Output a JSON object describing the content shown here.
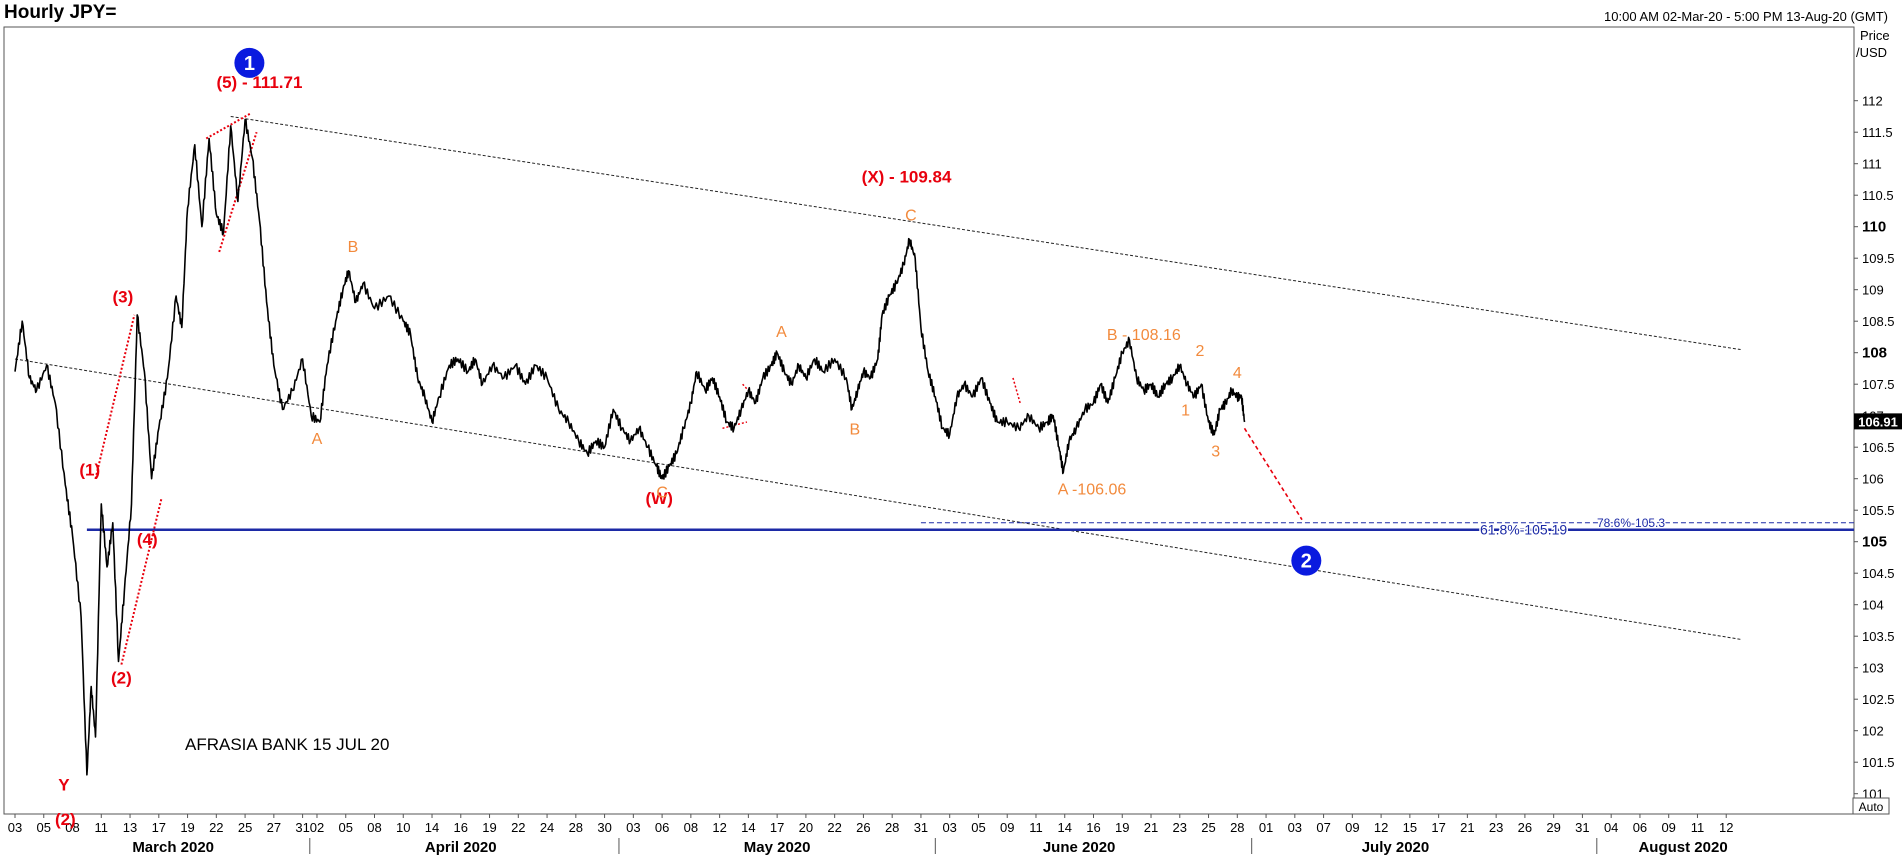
{
  "header": {
    "title": "Hourly JPY=",
    "date_range": "10:00 AM 02-Mar-20 - 5:00 PM 13-Aug-20 (GMT)"
  },
  "axis_units": {
    "line1": "Price",
    "line2": "/USD"
  },
  "auto_label": "Auto",
  "watermark": "AFRASIA BANK 15 JUL 20",
  "colors": {
    "wave": "#e8000d",
    "sub_wave": "#f28a3c",
    "fib": "#1c2aa6",
    "price": "#000000",
    "circle": "#0a1adf"
  },
  "chart_data": {
    "type": "line",
    "ylim": [
      100.8,
      112.6
    ],
    "y_ticks": [
      {
        "v": 101,
        "label": "101"
      },
      {
        "v": 101.5,
        "label": "101.5"
      },
      {
        "v": 102,
        "label": "102"
      },
      {
        "v": 102.5,
        "label": "102.5"
      },
      {
        "v": 103,
        "label": "103"
      },
      {
        "v": 103.5,
        "label": "103.5"
      },
      {
        "v": 104,
        "label": "104"
      },
      {
        "v": 104.5,
        "label": "104.5"
      },
      {
        "v": 105,
        "label": "105",
        "bold": true
      },
      {
        "v": 105.5,
        "label": "105.5"
      },
      {
        "v": 106,
        "label": "106"
      },
      {
        "v": 106.5,
        "label": "106.5"
      },
      {
        "v": 107,
        "label": "107"
      },
      {
        "v": 107.5,
        "label": "107.5"
      },
      {
        "v": 108,
        "label": "108",
        "bold": true
      },
      {
        "v": 108.5,
        "label": "108.5"
      },
      {
        "v": 109,
        "label": "109"
      },
      {
        "v": 109.5,
        "label": "109.5"
      },
      {
        "v": 110,
        "label": "110",
        "bold": true
      },
      {
        "v": 110.5,
        "label": "110.5"
      },
      {
        "v": 111,
        "label": "111"
      },
      {
        "v": 111.5,
        "label": "111.5"
      },
      {
        "v": 112,
        "label": "112"
      }
    ],
    "x_ticks": [
      {
        "d": 0,
        "label": "03"
      },
      {
        "d": 2,
        "label": "05"
      },
      {
        "d": 4,
        "label": "08"
      },
      {
        "d": 6,
        "label": "11"
      },
      {
        "d": 8,
        "label": "13"
      },
      {
        "d": 10,
        "label": "17"
      },
      {
        "d": 12,
        "label": "19"
      },
      {
        "d": 14,
        "label": "22"
      },
      {
        "d": 16,
        "label": "25"
      },
      {
        "d": 18,
        "label": "27"
      },
      {
        "d": 20,
        "label": "31"
      },
      {
        "d": 21,
        "label": "02"
      },
      {
        "d": 23,
        "label": "05"
      },
      {
        "d": 25,
        "label": "08"
      },
      {
        "d": 27,
        "label": "10"
      },
      {
        "d": 29,
        "label": "14"
      },
      {
        "d": 31,
        "label": "16"
      },
      {
        "d": 33,
        "label": "19"
      },
      {
        "d": 35,
        "label": "22"
      },
      {
        "d": 37,
        "label": "24"
      },
      {
        "d": 39,
        "label": "28"
      },
      {
        "d": 41,
        "label": "30"
      },
      {
        "d": 43,
        "label": "03"
      },
      {
        "d": 45,
        "label": "06"
      },
      {
        "d": 47,
        "label": "08"
      },
      {
        "d": 49,
        "label": "12"
      },
      {
        "d": 51,
        "label": "14"
      },
      {
        "d": 53,
        "label": "17"
      },
      {
        "d": 55,
        "label": "20"
      },
      {
        "d": 57,
        "label": "22"
      },
      {
        "d": 59,
        "label": "26"
      },
      {
        "d": 61,
        "label": "28"
      },
      {
        "d": 63,
        "label": "31"
      },
      {
        "d": 65,
        "label": "03"
      },
      {
        "d": 67,
        "label": "05"
      },
      {
        "d": 69,
        "label": "09"
      },
      {
        "d": 71,
        "label": "11"
      },
      {
        "d": 73,
        "label": "14"
      },
      {
        "d": 75,
        "label": "16"
      },
      {
        "d": 77,
        "label": "19"
      },
      {
        "d": 79,
        "label": "21"
      },
      {
        "d": 81,
        "label": "23"
      },
      {
        "d": 83,
        "label": "25"
      },
      {
        "d": 85,
        "label": "28"
      },
      {
        "d": 87,
        "label": "01"
      },
      {
        "d": 89,
        "label": "03"
      },
      {
        "d": 91,
        "label": "07"
      },
      {
        "d": 93,
        "label": "09"
      },
      {
        "d": 95,
        "label": "12"
      },
      {
        "d": 97,
        "label": "15"
      },
      {
        "d": 99,
        "label": "17"
      },
      {
        "d": 101,
        "label": "21"
      },
      {
        "d": 103,
        "label": "23"
      },
      {
        "d": 105,
        "label": "26"
      },
      {
        "d": 107,
        "label": "29"
      },
      {
        "d": 109,
        "label": "31"
      },
      {
        "d": 111,
        "label": "04"
      },
      {
        "d": 113,
        "label": "06"
      },
      {
        "d": 115,
        "label": "09"
      },
      {
        "d": 117,
        "label": "11"
      },
      {
        "d": 119,
        "label": "12"
      }
    ],
    "months": [
      {
        "label": "March 2020",
        "d": 11,
        "sep": 20.5
      },
      {
        "label": "April 2020",
        "d": 31,
        "sep": 42
      },
      {
        "label": "May 2020",
        "d": 53,
        "sep": 64
      },
      {
        "label": "June 2020",
        "d": 74,
        "sep": 86
      },
      {
        "label": "July 2020",
        "d": 96,
        "sep": 110
      },
      {
        "label": "August 2020",
        "d": 116
      }
    ],
    "series": [
      {
        "values": [
          [
            0,
            107.7
          ],
          [
            0.5,
            108.5
          ],
          [
            1,
            107.6
          ],
          [
            1.5,
            107.4
          ],
          [
            2.2,
            107.8
          ],
          [
            2.8,
            107.2
          ],
          [
            3.5,
            105.9
          ],
          [
            4,
            105.1
          ],
          [
            4.6,
            103.8
          ],
          [
            5,
            101.3
          ],
          [
            5.3,
            102.7
          ],
          [
            5.6,
            101.9
          ],
          [
            6,
            105.6
          ],
          [
            6.4,
            104.6
          ],
          [
            6.8,
            105.3
          ],
          [
            7.2,
            103.1
          ],
          [
            7.6,
            104.2
          ],
          [
            8.1,
            105.6
          ],
          [
            8.5,
            108.6
          ],
          [
            9,
            107.7
          ],
          [
            9.5,
            106.0
          ],
          [
            10,
            106.8
          ],
          [
            10.6,
            107.6
          ],
          [
            11.2,
            108.9
          ],
          [
            11.6,
            108.4
          ],
          [
            12,
            110.3
          ],
          [
            12.5,
            111.3
          ],
          [
            13,
            110.0
          ],
          [
            13.5,
            111.4
          ],
          [
            14,
            110.2
          ],
          [
            14.5,
            109.9
          ],
          [
            15,
            111.6
          ],
          [
            15.5,
            110.4
          ],
          [
            16,
            111.7
          ],
          [
            16.5,
            111.1
          ],
          [
            17,
            110.1
          ],
          [
            17.5,
            108.8
          ],
          [
            18,
            107.8
          ],
          [
            18.6,
            107.1
          ],
          [
            19.3,
            107.4
          ],
          [
            20,
            107.9
          ],
          [
            20.6,
            107.0
          ],
          [
            21.2,
            106.9
          ],
          [
            21.7,
            107.8
          ],
          [
            22.3,
            108.5
          ],
          [
            22.8,
            109.0
          ],
          [
            23.2,
            109.3
          ],
          [
            23.7,
            108.8
          ],
          [
            24.2,
            109.1
          ],
          [
            25,
            108.7
          ],
          [
            26,
            108.9
          ],
          [
            27,
            108.5
          ],
          [
            27.5,
            108.3
          ],
          [
            28,
            107.6
          ],
          [
            28.5,
            107.3
          ],
          [
            29,
            106.9
          ],
          [
            29.5,
            107.3
          ],
          [
            30.2,
            107.8
          ],
          [
            30.8,
            107.9
          ],
          [
            31.5,
            107.7
          ],
          [
            32,
            107.9
          ],
          [
            32.5,
            107.5
          ],
          [
            33.2,
            107.8
          ],
          [
            34,
            107.6
          ],
          [
            34.8,
            107.8
          ],
          [
            35.5,
            107.5
          ],
          [
            36.2,
            107.8
          ],
          [
            37,
            107.6
          ],
          [
            37.8,
            107.1
          ],
          [
            38.5,
            106.9
          ],
          [
            39.2,
            106.6
          ],
          [
            39.8,
            106.4
          ],
          [
            40.4,
            106.6
          ],
          [
            41,
            106.5
          ],
          [
            41.6,
            107.1
          ],
          [
            42.2,
            106.8
          ],
          [
            42.8,
            106.6
          ],
          [
            43.4,
            106.8
          ],
          [
            44,
            106.5
          ],
          [
            44.6,
            106.2
          ],
          [
            45,
            106.0
          ],
          [
            45.5,
            106.2
          ],
          [
            46,
            106.4
          ],
          [
            46.5,
            106.8
          ],
          [
            47,
            107.2
          ],
          [
            47.4,
            107.7
          ],
          [
            48,
            107.4
          ],
          [
            48.5,
            107.6
          ],
          [
            49,
            107.3
          ],
          [
            49.5,
            106.9
          ],
          [
            50,
            106.8
          ],
          [
            50.5,
            107.1
          ],
          [
            51,
            107.4
          ],
          [
            51.5,
            107.2
          ],
          [
            52,
            107.6
          ],
          [
            52.6,
            107.8
          ],
          [
            53,
            108.0
          ],
          [
            53.5,
            107.7
          ],
          [
            54,
            107.5
          ],
          [
            54.5,
            107.8
          ],
          [
            55,
            107.6
          ],
          [
            55.6,
            107.9
          ],
          [
            56.2,
            107.7
          ],
          [
            57,
            107.9
          ],
          [
            57.8,
            107.6
          ],
          [
            58.2,
            107.1
          ],
          [
            58.6,
            107.4
          ],
          [
            59,
            107.7
          ],
          [
            59.5,
            107.6
          ],
          [
            60,
            107.9
          ],
          [
            60.3,
            108.6
          ],
          [
            60.8,
            108.9
          ],
          [
            61.3,
            109.1
          ],
          [
            61.8,
            109.4
          ],
          [
            62.2,
            109.8
          ],
          [
            62.6,
            109.5
          ],
          [
            63,
            108.4
          ],
          [
            63.5,
            107.7
          ],
          [
            64,
            107.3
          ],
          [
            64.5,
            106.8
          ],
          [
            65,
            106.7
          ],
          [
            65.5,
            107.3
          ],
          [
            66,
            107.5
          ],
          [
            66.6,
            107.3
          ],
          [
            67.2,
            107.6
          ],
          [
            67.8,
            107.2
          ],
          [
            68.3,
            106.9
          ],
          [
            69,
            106.9
          ],
          [
            69.8,
            106.8
          ],
          [
            70.5,
            107.0
          ],
          [
            71.2,
            106.8
          ],
          [
            71.8,
            106.9
          ],
          [
            72.2,
            107.0
          ],
          [
            72.6,
            106.5
          ],
          [
            72.9,
            106.1
          ],
          [
            73.3,
            106.6
          ],
          [
            73.8,
            106.8
          ],
          [
            74.4,
            107.1
          ],
          [
            75,
            107.2
          ],
          [
            75.5,
            107.5
          ],
          [
            76,
            107.2
          ],
          [
            76.5,
            107.6
          ],
          [
            77,
            108.0
          ],
          [
            77.5,
            108.2
          ],
          [
            78,
            107.6
          ],
          [
            78.5,
            107.4
          ],
          [
            79,
            107.5
          ],
          [
            79.5,
            107.3
          ],
          [
            80,
            107.5
          ],
          [
            80.5,
            107.6
          ],
          [
            81,
            107.8
          ],
          [
            81.5,
            107.5
          ],
          [
            82,
            107.3
          ],
          [
            82.5,
            107.5
          ],
          [
            83,
            106.9
          ],
          [
            83.4,
            106.7
          ],
          [
            83.8,
            107.1
          ],
          [
            84.2,
            107.2
          ],
          [
            84.6,
            107.4
          ],
          [
            85,
            107.3
          ],
          [
            85.3,
            107.3
          ],
          [
            85.5,
            106.9
          ]
        ]
      }
    ],
    "channel_lines": [
      {
        "from": [
          15,
          111.75
        ],
        "to": [
          120,
          108.05
        ]
      },
      {
        "from": [
          0,
          107.9
        ],
        "to": [
          120,
          103.45
        ]
      }
    ],
    "fib_line": {
      "value": 105.19,
      "from": 5.0,
      "to": 120,
      "label": "61.8%-105.19"
    },
    "fib_line_2": {
      "value": 105.3,
      "from": 63,
      "to": 120,
      "label": "78.6%-105.3"
    },
    "last_price": {
      "value": 106.91,
      "label": "106.91"
    },
    "projection": {
      "from": [
        85.5,
        106.8
      ],
      "to": [
        89.5,
        105.35
      ]
    },
    "waves": [
      {
        "label": "(5) - 111.71",
        "d": 17,
        "v": 112.2,
        "color": "wave"
      },
      {
        "label": "(3)",
        "d": 7.5,
        "v": 108.8,
        "color": "wave"
      },
      {
        "label": "(1)",
        "d": 5.2,
        "v": 106.05,
        "color": "wave"
      },
      {
        "label": "(4)",
        "d": 9.2,
        "v": 104.95,
        "color": "wave"
      },
      {
        "label": "(2)",
        "d": 7.4,
        "v": 102.75,
        "color": "wave"
      },
      {
        "label": "Y",
        "d": 3.4,
        "v": 101.05,
        "color": "wave"
      },
      {
        "label": "(2)",
        "d": 3.5,
        "v": 100.5,
        "color": "wave"
      },
      {
        "label": "(W)",
        "d": 44.8,
        "v": 105.6,
        "color": "wave"
      },
      {
        "label": "(X) - 109.84",
        "d": 62,
        "v": 110.7,
        "color": "wave"
      },
      {
        "label": "A",
        "d": 21,
        "v": 106.55,
        "color": "sub_wave"
      },
      {
        "label": "B",
        "d": 23.5,
        "v": 109.6,
        "color": "sub_wave"
      },
      {
        "label": "C",
        "d": 45,
        "v": 105.7,
        "color": "sub_wave"
      },
      {
        "label": "A",
        "d": 53.3,
        "v": 108.25,
        "color": "sub_wave"
      },
      {
        "label": "B",
        "d": 58.4,
        "v": 106.7,
        "color": "sub_wave"
      },
      {
        "label": "C",
        "d": 62.3,
        "v": 110.1,
        "color": "sub_wave"
      },
      {
        "label": "A -106.06",
        "d": 74.9,
        "v": 105.75,
        "color": "sub_wave"
      },
      {
        "label": "B - 108.16",
        "d": 78.5,
        "v": 108.2,
        "color": "sub_wave"
      },
      {
        "label": "1",
        "d": 81.4,
        "v": 107.0,
        "color": "sub_wave"
      },
      {
        "label": "2",
        "d": 82.4,
        "v": 107.95,
        "color": "sub_wave"
      },
      {
        "label": "3",
        "d": 83.5,
        "v": 106.35,
        "color": "sub_wave"
      },
      {
        "label": "4",
        "d": 85,
        "v": 107.6,
        "color": "sub_wave"
      }
    ],
    "circles": [
      {
        "label": "1",
        "d": 16.3,
        "v": 112.6
      },
      {
        "label": "2",
        "d": 89.8,
        "v": 104.7
      }
    ],
    "wedge_lines": [
      {
        "from": [
          13.3,
          111.4
        ],
        "to": [
          16.4,
          111.8
        ]
      },
      {
        "from": [
          14.2,
          109.6
        ],
        "to": [
          16.8,
          111.5
        ]
      },
      {
        "from": [
          7.4,
          103.05
        ],
        "to": [
          10.2,
          105.7
        ]
      },
      {
        "from": [
          5.6,
          106.0
        ],
        "to": [
          8.3,
          108.6
        ]
      }
    ],
    "small_marks": [
      {
        "from": [
          49.2,
          106.8
        ],
        "to": [
          50.9,
          106.9
        ]
      },
      {
        "from": [
          50.6,
          107.5
        ],
        "to": [
          51.2,
          107.35
        ]
      },
      {
        "from": [
          69.4,
          107.6
        ],
        "to": [
          69.9,
          107.2
        ]
      }
    ]
  }
}
